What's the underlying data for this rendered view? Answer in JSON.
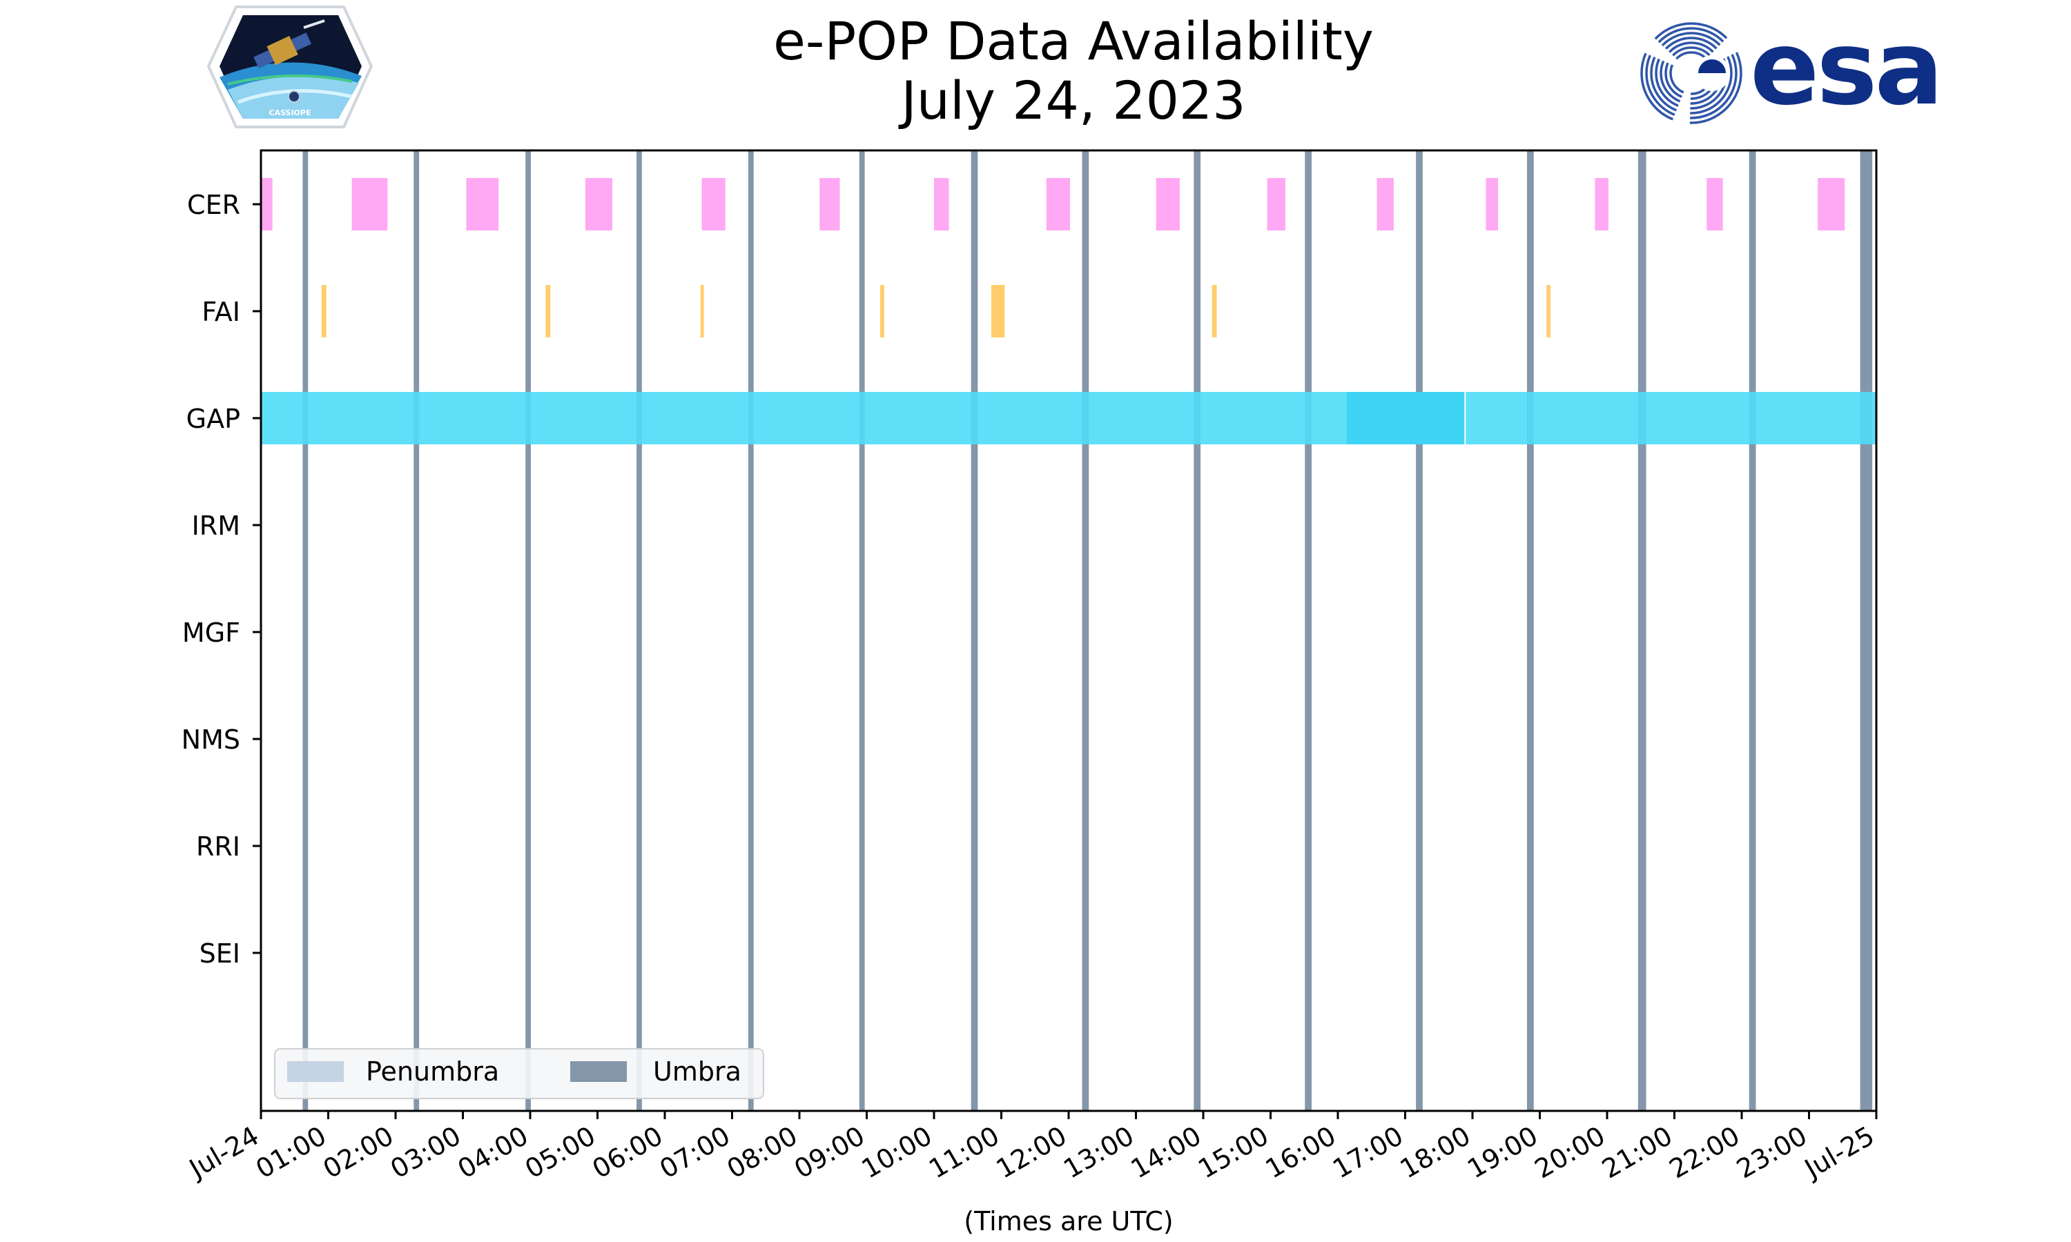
{
  "title_line1": "e-POP Data Availability",
  "title_line2": "July 24, 2023",
  "logo_left": {
    "icon": "cassiope-mission-badge",
    "text": "CASSIOPE"
  },
  "logo_right": {
    "icon": "esa-logo",
    "text": "esa"
  },
  "colors": {
    "CER": "#ff9ef2",
    "FAI": "#ffc95c",
    "GAP": "#4fdcf7",
    "GAP_dense": "#3fd3f6",
    "umbra": "#8496a9",
    "penumbra": "#c6d3e3"
  },
  "chart_data": {
    "type": "timeline",
    "date": "2023-07-24",
    "xlabel": "(Times are UTC)",
    "x_range_hours": [
      0,
      24
    ],
    "x_tick_labels": [
      "Jul-24",
      "01:00",
      "02:00",
      "03:00",
      "04:00",
      "05:00",
      "06:00",
      "07:00",
      "08:00",
      "09:00",
      "10:00",
      "11:00",
      "12:00",
      "13:00",
      "14:00",
      "15:00",
      "16:00",
      "17:00",
      "18:00",
      "19:00",
      "20:00",
      "21:00",
      "22:00",
      "23:00",
      "Jul-25"
    ],
    "instruments": [
      "CER",
      "FAI",
      "GAP",
      "IRM",
      "MGF",
      "NMS",
      "RRI",
      "SEI"
    ],
    "intervals_hours": {
      "CER": [
        [
          0.0,
          0.17
        ],
        [
          1.35,
          1.88
        ],
        [
          3.05,
          3.53
        ],
        [
          4.82,
          5.22
        ],
        [
          6.55,
          6.9
        ],
        [
          8.3,
          8.6
        ],
        [
          10.0,
          10.22
        ],
        [
          11.67,
          12.02
        ],
        [
          13.3,
          13.65
        ],
        [
          14.95,
          15.22
        ],
        [
          16.58,
          16.83
        ],
        [
          18.2,
          18.38
        ],
        [
          19.82,
          20.02
        ],
        [
          21.48,
          21.72
        ],
        [
          23.13,
          23.53
        ]
      ],
      "FAI": [
        [
          0.9,
          0.97
        ],
        [
          4.23,
          4.3
        ],
        [
          6.53,
          6.58
        ],
        [
          9.2,
          9.26
        ],
        [
          10.85,
          11.05
        ],
        [
          14.13,
          14.2
        ],
        [
          19.1,
          19.16
        ]
      ],
      "GAP": [
        [
          0.0,
          16.13
        ],
        [
          16.13,
          17.88
        ],
        [
          17.9,
          24.0
        ]
      ],
      "IRM": [],
      "MGF": [],
      "NMS": [],
      "RRI": [],
      "SEI": []
    },
    "umbra_hours": [
      [
        0.62,
        0.7
      ],
      [
        2.27,
        2.35
      ],
      [
        3.93,
        4.01
      ],
      [
        5.58,
        5.66
      ],
      [
        7.24,
        7.32
      ],
      [
        8.89,
        8.97
      ],
      [
        10.55,
        10.65
      ],
      [
        12.2,
        12.3
      ],
      [
        13.86,
        13.96
      ],
      [
        15.51,
        15.61
      ],
      [
        17.16,
        17.26
      ],
      [
        18.81,
        18.91
      ],
      [
        20.46,
        20.58
      ],
      [
        22.11,
        22.21
      ],
      [
        23.76,
        23.94
      ]
    ],
    "legend": {
      "position": "lower-left",
      "entries": [
        "Penumbra",
        "Umbra"
      ]
    },
    "grid": false
  }
}
